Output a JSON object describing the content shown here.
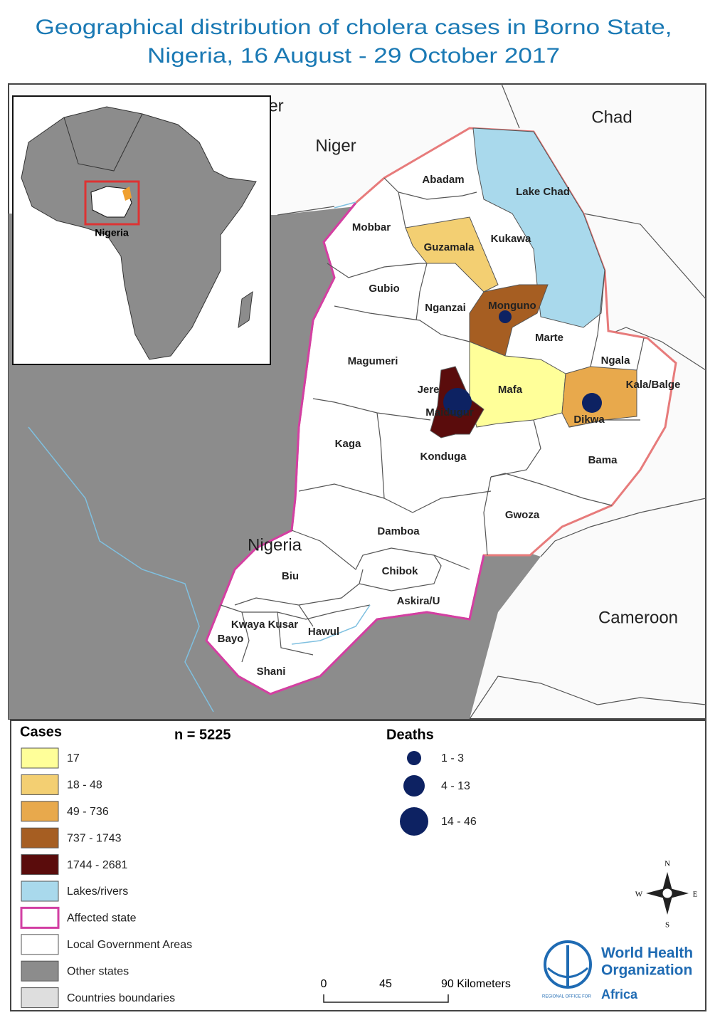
{
  "title": {
    "line1": "Geographical distribution of cholera  cases in Borno State,",
    "line2": "Nigeria, 16 August - 29 October 2017"
  },
  "map": {
    "countries": {
      "niger_cut": "er",
      "niger": "Niger",
      "chad": "Chad",
      "cameroon": "Cameroon",
      "nigeria": "Nigeria"
    },
    "inset_label": "Nigeria",
    "lgas": [
      "Abadam",
      "Lake Chad",
      "Mobbar",
      "Guzamala",
      "Kukawa",
      "Gubio",
      "Nganzai",
      "Monguno",
      "Marte",
      "Magumeri",
      "Ngala",
      "Kala/Balge",
      "Jere",
      "Maidugur",
      "Mafa",
      "Dikwa",
      "Kaga",
      "Konduga",
      "Bama",
      "Gwoza",
      "Damboa",
      "Biu",
      "Chibok",
      "Askira/U",
      "Kwaya Kusar",
      "Hawul",
      "Bayo",
      "Shani"
    ]
  },
  "legend": {
    "cases_title": "Cases",
    "n": "n = 5225",
    "cases": [
      {
        "label": "17",
        "color": "#ffff99"
      },
      {
        "label": "18 - 48",
        "color": "#f3cf72"
      },
      {
        "label": "49 - 736",
        "color": "#e8a94c"
      },
      {
        "label": "737 - 1743",
        "color": "#a65e22"
      },
      {
        "label": "1744 - 2681",
        "color": "#5a0c0c"
      },
      {
        "label": "Lakes/rivers",
        "color": "#a9d9ec"
      },
      {
        "label": "Affected state",
        "color": "#ffffff",
        "outline": "#d23fa3"
      },
      {
        "label": "Local Government Areas",
        "color": "#ffffff"
      },
      {
        "label": "Other states",
        "color": "#8c8c8c"
      },
      {
        "label": "Countries boundaries",
        "color": "#dedede"
      }
    ],
    "deaths_title": "Deaths",
    "deaths": [
      {
        "label": "1 - 3"
      },
      {
        "label": "4 - 13"
      },
      {
        "label": "14 - 46"
      }
    ],
    "death_color": "#0d2262"
  },
  "compass": {
    "n": "N",
    "s": "S",
    "e": "E",
    "w": "W"
  },
  "scale": [
    "0",
    "45",
    "90 Kilometers"
  ],
  "logo": {
    "line1": "World Health",
    "line2": "Organization",
    "regional": "REGIONAL OFFICE FOR",
    "region": "Africa"
  }
}
